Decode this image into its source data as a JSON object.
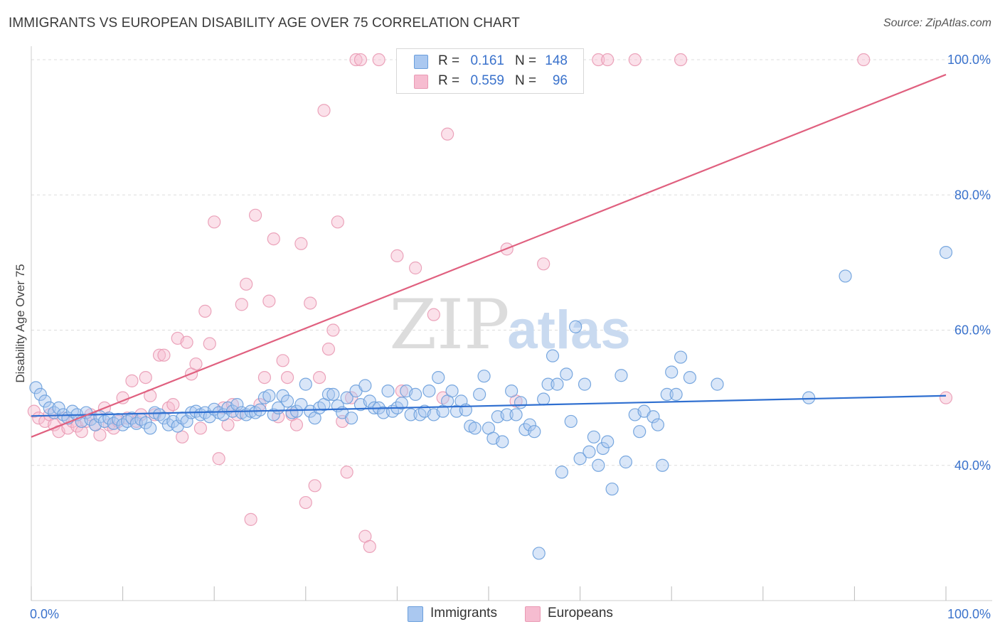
{
  "title": "IMMIGRANTS VS EUROPEAN DISABILITY AGE OVER 75 CORRELATION CHART",
  "source": "Source: ZipAtlas.com",
  "watermark": {
    "zip": "ZIP",
    "atlas": "atlas"
  },
  "colors": {
    "immigrants_fill": "#aac8f0",
    "immigrants_stroke": "#6a9edc",
    "immigrants_line": "#2f6fd0",
    "europeans_fill": "#f6bcd0",
    "europeans_stroke": "#e99ab4",
    "europeans_line": "#e0607f",
    "axis_label": "#3a72cc",
    "grid": "#dddddd"
  },
  "legend": {
    "rows": [
      {
        "r_label": "R =",
        "r_value": "0.161",
        "n_label": "N =",
        "n_value": "148"
      },
      {
        "r_label": "R =",
        "r_value": "0.559",
        "n_label": "N =",
        "n_value": "96"
      }
    ]
  },
  "bottom_legend": {
    "immigrants": "Immigrants",
    "europeans": "Europeans"
  },
  "chart_data": {
    "type": "scatter",
    "title": "IMMIGRANTS VS EUROPEAN DISABILITY AGE OVER 75 CORRELATION CHART",
    "xlabel": "",
    "ylabel": "Disability Age Over 75",
    "xlim": [
      0,
      100
    ],
    "ylim": [
      20,
      102
    ],
    "x_tick_labels": [
      "0.0%",
      "100.0%"
    ],
    "y_ticks": [
      40,
      60,
      80,
      100
    ],
    "y_tick_labels": [
      "40.0%",
      "60.0%",
      "80.0%",
      "100.0%"
    ],
    "grid": true,
    "legend_position": "top-center",
    "series": [
      {
        "name": "Immigrants",
        "r": 0.161,
        "n": 148,
        "trend": {
          "x": [
            0,
            100
          ],
          "y": [
            47.3,
            50.3
          ]
        },
        "points": [
          [
            0.5,
            51.5
          ],
          [
            1,
            50.5
          ],
          [
            1.5,
            49.5
          ],
          [
            2,
            48.5
          ],
          [
            2.5,
            47.8
          ],
          [
            3,
            48.5
          ],
          [
            3.5,
            47.5
          ],
          [
            4,
            47
          ],
          [
            4.5,
            48
          ],
          [
            5,
            47.5
          ],
          [
            5.5,
            46.5
          ],
          [
            6,
            47.8
          ],
          [
            6.5,
            46.8
          ],
          [
            7,
            46
          ],
          [
            7.5,
            47.2
          ],
          [
            8,
            46.5
          ],
          [
            8.5,
            47
          ],
          [
            9,
            46.2
          ],
          [
            9.5,
            46.8
          ],
          [
            10,
            46
          ],
          [
            10.5,
            46.5
          ],
          [
            11,
            47
          ],
          [
            11.5,
            46.2
          ],
          [
            12,
            46.8
          ],
          [
            12.5,
            46.3
          ],
          [
            13,
            45.5
          ],
          [
            13.5,
            47.8
          ],
          [
            14,
            47.5
          ],
          [
            14.5,
            47
          ],
          [
            15,
            46
          ],
          [
            15.5,
            46.5
          ],
          [
            16,
            45.8
          ],
          [
            16.5,
            47
          ],
          [
            17,
            46.5
          ],
          [
            17.5,
            47.8
          ],
          [
            18,
            48
          ],
          [
            18.5,
            47.5
          ],
          [
            19,
            47.8
          ],
          [
            19.5,
            47.2
          ],
          [
            20,
            48.3
          ],
          [
            20.5,
            47.8
          ],
          [
            21,
            47.5
          ],
          [
            21.5,
            48.5
          ],
          [
            22,
            48
          ],
          [
            22.5,
            49
          ],
          [
            23,
            47.8
          ],
          [
            23.5,
            47.5
          ],
          [
            24,
            48
          ],
          [
            24.5,
            47.8
          ],
          [
            25,
            48.2
          ],
          [
            25.5,
            50
          ],
          [
            26,
            50.3
          ],
          [
            26.5,
            47.5
          ],
          [
            27,
            48.5
          ],
          [
            27.5,
            50.3
          ],
          [
            28,
            49.5
          ],
          [
            28.5,
            47.8
          ],
          [
            29,
            48
          ],
          [
            29.5,
            49
          ],
          [
            30,
            52
          ],
          [
            30.5,
            48
          ],
          [
            31,
            47
          ],
          [
            31.5,
            48.5
          ],
          [
            32,
            49
          ],
          [
            32.5,
            50.5
          ],
          [
            33,
            50.5
          ],
          [
            33.5,
            48.8
          ],
          [
            34,
            47.8
          ],
          [
            34.5,
            50
          ],
          [
            35,
            47
          ],
          [
            35.5,
            51
          ],
          [
            36,
            49
          ],
          [
            36.5,
            51.8
          ],
          [
            37,
            49.5
          ],
          [
            37.5,
            48.5
          ],
          [
            38,
            48.5
          ],
          [
            38.5,
            47.8
          ],
          [
            39,
            51
          ],
          [
            39.5,
            48
          ],
          [
            40,
            48.5
          ],
          [
            40.5,
            49.2
          ],
          [
            41,
            51
          ],
          [
            41.5,
            47.5
          ],
          [
            42,
            50.5
          ],
          [
            42.5,
            47.5
          ],
          [
            43,
            48
          ],
          [
            43.5,
            51
          ],
          [
            44,
            47.5
          ],
          [
            44.5,
            53
          ],
          [
            45,
            48
          ],
          [
            45.5,
            49.5
          ],
          [
            46,
            51
          ],
          [
            46.5,
            48
          ],
          [
            47,
            49.5
          ],
          [
            47.5,
            48.2
          ],
          [
            48,
            45.8
          ],
          [
            48.5,
            45.5
          ],
          [
            49,
            50.5
          ],
          [
            49.5,
            53.2
          ],
          [
            50,
            45.5
          ],
          [
            50.5,
            44
          ],
          [
            51,
            47.2
          ],
          [
            51.5,
            43.5
          ],
          [
            52,
            47.5
          ],
          [
            52.5,
            51
          ],
          [
            53,
            47.5
          ],
          [
            53.5,
            49.3
          ],
          [
            54,
            45.3
          ],
          [
            54.5,
            46
          ],
          [
            55,
            45
          ],
          [
            55.5,
            27
          ],
          [
            56,
            49.8
          ],
          [
            56.5,
            52
          ],
          [
            57,
            56.2
          ],
          [
            57.5,
            52
          ],
          [
            58,
            39
          ],
          [
            58.5,
            53.5
          ],
          [
            59,
            46.5
          ],
          [
            59.5,
            60.5
          ],
          [
            60,
            41
          ],
          [
            60.5,
            52
          ],
          [
            61,
            42
          ],
          [
            61.5,
            44.2
          ],
          [
            62,
            40
          ],
          [
            62.5,
            42.5
          ],
          [
            63,
            43.5
          ],
          [
            63.5,
            36.5
          ],
          [
            64.5,
            53.3
          ],
          [
            65,
            40.5
          ],
          [
            66,
            47.5
          ],
          [
            66.5,
            45
          ],
          [
            67,
            48
          ],
          [
            68,
            47.2
          ],
          [
            68.5,
            46
          ],
          [
            69,
            40
          ],
          [
            69.5,
            50.5
          ],
          [
            70,
            53.8
          ],
          [
            70.5,
            50.5
          ],
          [
            71,
            56
          ],
          [
            72,
            53
          ],
          [
            75,
            52
          ],
          [
            85,
            50
          ],
          [
            89,
            68
          ],
          [
            100,
            71.5
          ]
        ]
      },
      {
        "name": "Europeans",
        "r": 0.559,
        "n": 96,
        "trend": {
          "x": [
            0,
            100
          ],
          "y": [
            44.2,
            97.8
          ]
        },
        "points": [
          [
            0.3,
            48
          ],
          [
            0.8,
            47
          ],
          [
            1.5,
            46.5
          ],
          [
            2,
            47.5
          ],
          [
            2.5,
            46
          ],
          [
            3,
            45
          ],
          [
            3.5,
            47
          ],
          [
            4,
            45.5
          ],
          [
            4.5,
            46.5
          ],
          [
            5,
            45.8
          ],
          [
            5.5,
            45
          ],
          [
            6,
            46.5
          ],
          [
            6.5,
            47.5
          ],
          [
            7,
            46
          ],
          [
            7.5,
            44.5
          ],
          [
            8,
            48.5
          ],
          [
            8.5,
            46
          ],
          [
            9,
            45.5
          ],
          [
            9.5,
            46.5
          ],
          [
            10,
            50
          ],
          [
            10.5,
            47
          ],
          [
            11,
            52.5
          ],
          [
            11.5,
            46.5
          ],
          [
            12,
            47.5
          ],
          [
            12.5,
            53
          ],
          [
            13,
            50.3
          ],
          [
            13.5,
            47.5
          ],
          [
            14,
            56.3
          ],
          [
            14.5,
            56.3
          ],
          [
            15,
            48.5
          ],
          [
            15.5,
            49
          ],
          [
            16,
            58.8
          ],
          [
            16.5,
            44.2
          ],
          [
            17,
            58.2
          ],
          [
            17.5,
            53.5
          ],
          [
            18,
            55
          ],
          [
            18.5,
            45.5
          ],
          [
            19,
            62.8
          ],
          [
            19.5,
            58
          ],
          [
            20,
            76
          ],
          [
            20.5,
            41
          ],
          [
            21,
            48.5
          ],
          [
            21.5,
            46
          ],
          [
            22,
            49
          ],
          [
            22.5,
            47.5
          ],
          [
            23,
            63.8
          ],
          [
            23.5,
            66.8
          ],
          [
            24,
            32
          ],
          [
            24.5,
            77
          ],
          [
            25,
            49
          ],
          [
            25.5,
            53
          ],
          [
            26,
            64.3
          ],
          [
            26.5,
            73.5
          ],
          [
            27,
            47.2
          ],
          [
            27.5,
            55.5
          ],
          [
            28,
            53
          ],
          [
            28.5,
            47.5
          ],
          [
            29,
            46
          ],
          [
            29.5,
            72.8
          ],
          [
            30,
            34.5
          ],
          [
            30.5,
            64
          ],
          [
            31,
            37
          ],
          [
            31.5,
            53
          ],
          [
            32,
            92.5
          ],
          [
            32.5,
            57.2
          ],
          [
            33,
            60
          ],
          [
            33.5,
            76
          ],
          [
            34,
            46.5
          ],
          [
            34.5,
            39
          ],
          [
            35,
            50
          ],
          [
            35.5,
            100
          ],
          [
            36,
            100
          ],
          [
            36.5,
            29.5
          ],
          [
            37,
            28
          ],
          [
            38,
            100
          ],
          [
            40,
            71
          ],
          [
            40.5,
            51
          ],
          [
            41,
            100
          ],
          [
            42,
            69.2
          ],
          [
            42.5,
            100
          ],
          [
            44,
            62.3
          ],
          [
            45,
            50
          ],
          [
            45.5,
            89
          ],
          [
            46,
            100
          ],
          [
            47,
            100
          ],
          [
            48,
            100
          ],
          [
            52,
            72
          ],
          [
            53,
            49.5
          ],
          [
            56,
            69.8
          ],
          [
            62,
            100
          ],
          [
            63,
            100
          ],
          [
            66,
            100
          ],
          [
            71,
            100
          ],
          [
            91,
            100
          ],
          [
            100,
            50
          ]
        ]
      }
    ]
  }
}
